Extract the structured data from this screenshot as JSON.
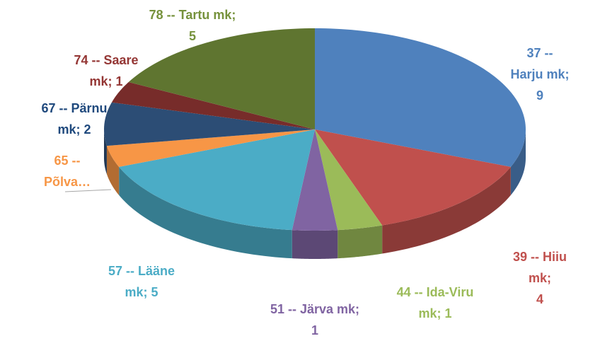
{
  "chart_data": {
    "type": "pie3d",
    "values": [
      9,
      4,
      1,
      1,
      5,
      1,
      2,
      1,
      5
    ],
    "value_labels": [
      "37 -- Harju mk;\n9",
      "39 -- Hiiu mk;\n4",
      "44 -- Ida-Viru\nmk; 1",
      "51 -- Järva mk;\n1",
      "57 -- Lääne\nmk; 5",
      "65 --\nPõlva…",
      "67 -- Pärnu\nmk; 2",
      "74 -- Saare\nmk; 1",
      "78 -- Tartu mk;\n5"
    ],
    "colors": [
      "#4f81bd",
      "#c0504d",
      "#9bbb59",
      "#8064a2",
      "#4bacc6",
      "#f79646",
      "#2c4d75",
      "#772c2a",
      "#5f7530"
    ],
    "label_colors": [
      "#4f81bd",
      "#c0504d",
      "#9bbb59",
      "#8064a2",
      "#4bacc6",
      "#f79646",
      "#1f497d",
      "#943634",
      "#76923c"
    ]
  }
}
